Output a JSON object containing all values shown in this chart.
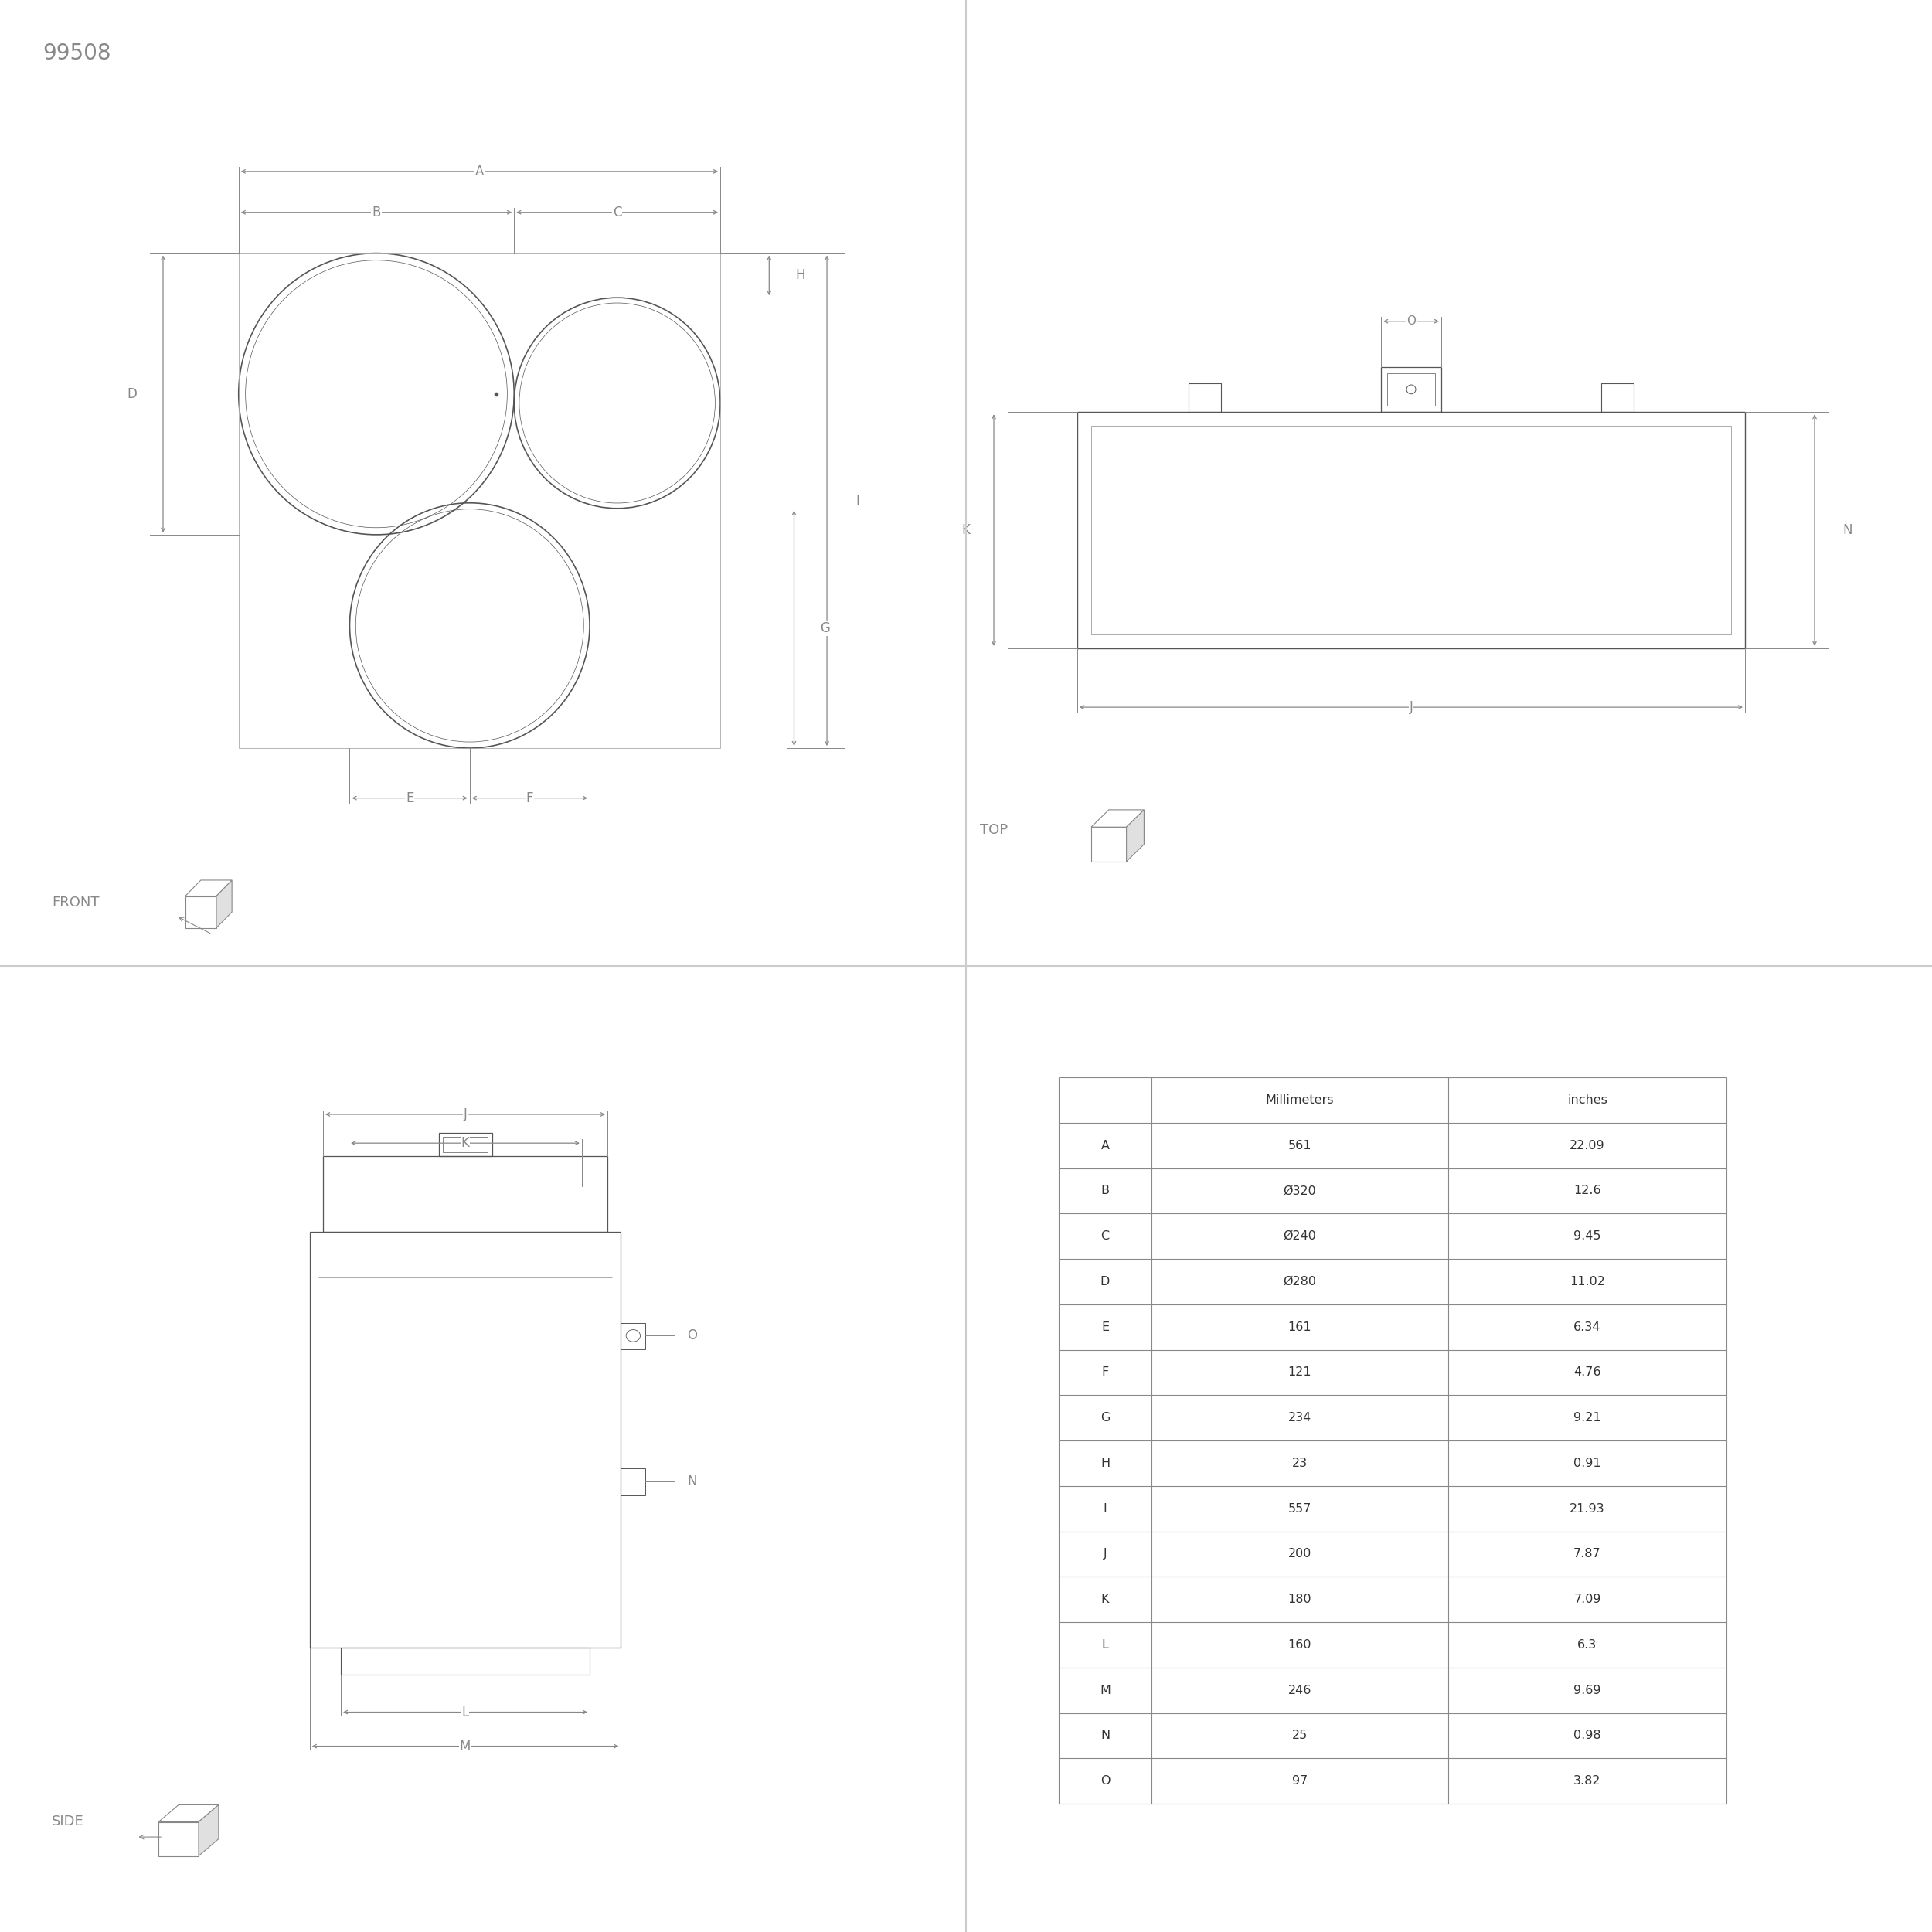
{
  "product_id": "99508",
  "bg_color": "#ffffff",
  "line_color": "#888888",
  "text_color": "#888888",
  "dark_line": "#555555",
  "table_data": {
    "headers": [
      "",
      "Millimeters",
      "inches"
    ],
    "rows": [
      [
        "A",
        "561",
        "22.09"
      ],
      [
        "B",
        "Ø320",
        "12.6"
      ],
      [
        "C",
        "Ø240",
        "9.45"
      ],
      [
        "D",
        "Ø280",
        "11.02"
      ],
      [
        "E",
        "161",
        "6.34"
      ],
      [
        "F",
        "121",
        "4.76"
      ],
      [
        "G",
        "234",
        "9.21"
      ],
      [
        "H",
        "23",
        "0.91"
      ],
      [
        "I",
        "557",
        "21.93"
      ],
      [
        "J",
        "200",
        "7.87"
      ],
      [
        "K",
        "180",
        "7.09"
      ],
      [
        "L",
        "160",
        "6.3"
      ],
      [
        "M",
        "246",
        "9.69"
      ],
      [
        "N",
        "25",
        "0.98"
      ],
      [
        "O",
        "97",
        "3.82"
      ]
    ]
  }
}
